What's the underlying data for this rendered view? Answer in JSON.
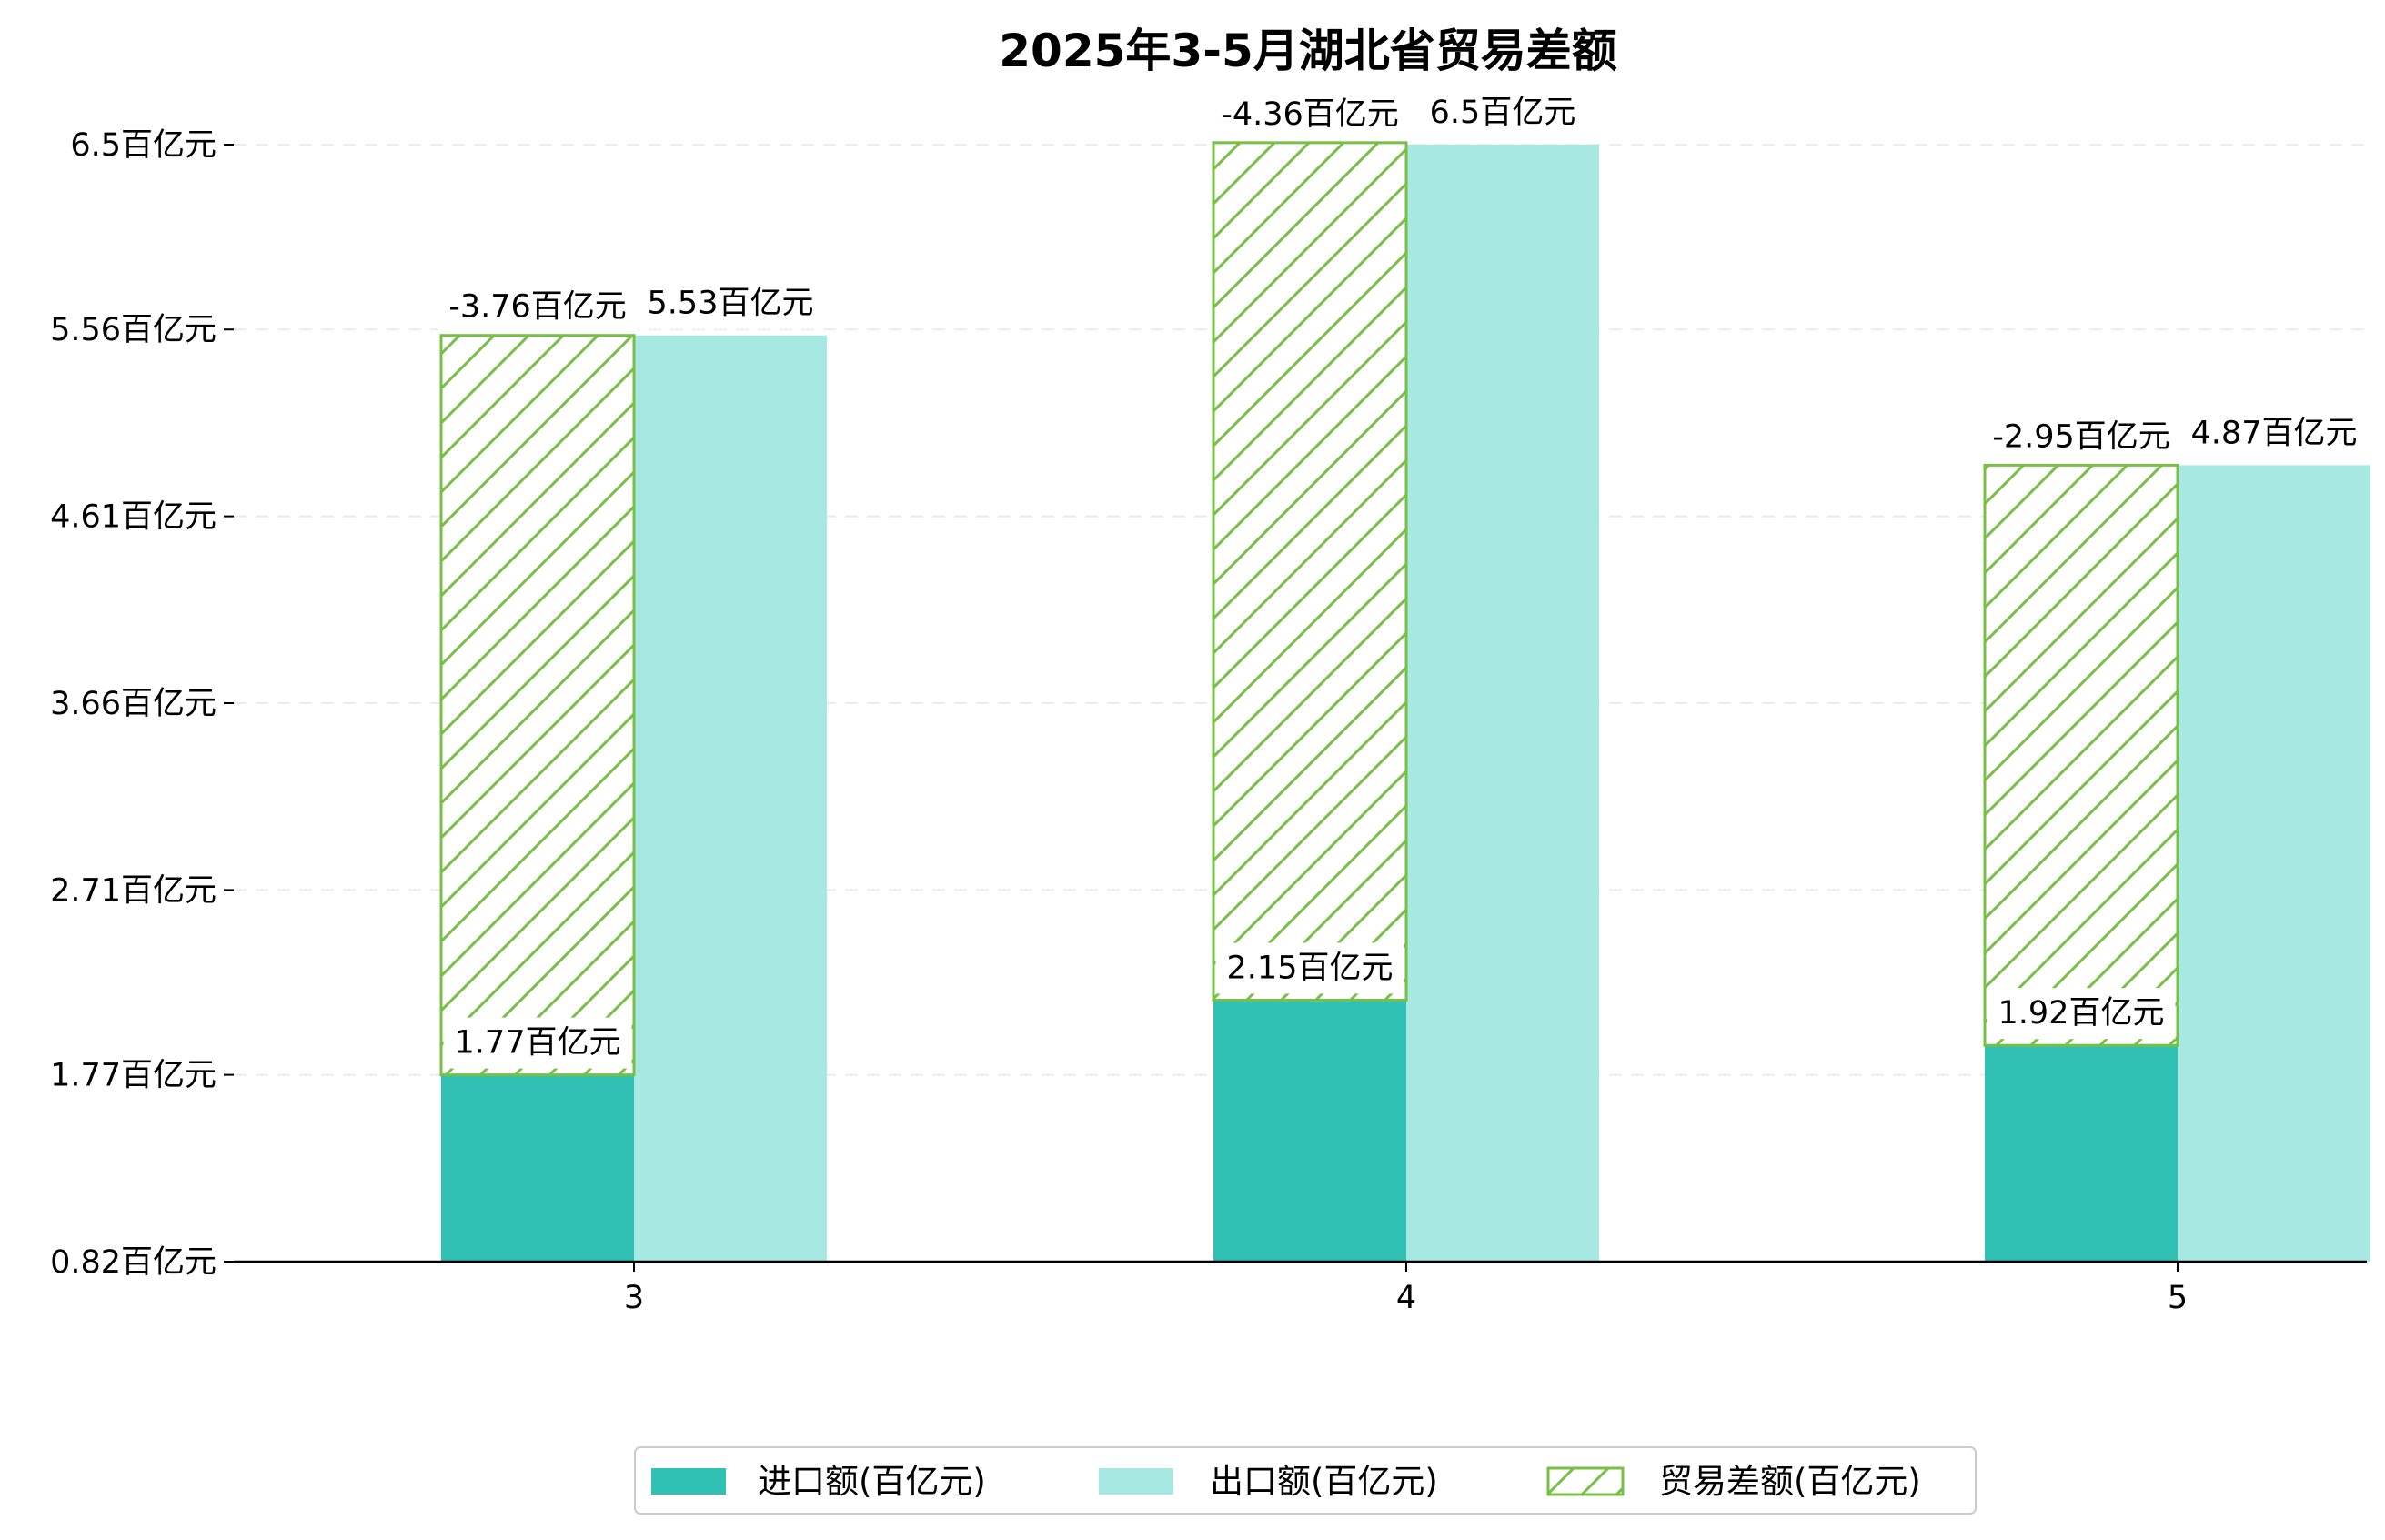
{
  "chart_data": {
    "type": "bar",
    "title": "2025年3-5月湖北省贸易差额",
    "xlabel": "",
    "ylabel": "",
    "categories": [
      "3",
      "4",
      "5"
    ],
    "series": [
      {
        "name": "进口额(百亿元)",
        "color": "#31c0b4",
        "values": [
          1.77,
          2.15,
          1.92
        ],
        "labels": [
          "1.77百亿元",
          "2.15百亿元",
          "1.92百亿元"
        ]
      },
      {
        "name": "出口额(百亿元)",
        "color": "#a8e8e2",
        "values": [
          5.53,
          6.5,
          4.87
        ],
        "labels": [
          "5.53百亿元",
          "6.5百亿元",
          "4.87百亿元"
        ]
      },
      {
        "name": "贸易差额(百亿元)",
        "color": "#78bf45",
        "pattern": "diagonal-hatch",
        "values": [
          -3.76,
          -4.36,
          -2.95
        ],
        "labels": [
          "-3.76百亿元",
          "-4.36百亿元",
          "-2.95百亿元"
        ]
      }
    ],
    "yticks": [
      0.82,
      1.77,
      2.71,
      3.66,
      4.61,
      5.56,
      6.5
    ],
    "ytick_labels": [
      "0.82百亿元",
      "1.77百亿元",
      "2.71百亿元",
      "3.66百亿元",
      "4.61百亿元",
      "5.56百亿元",
      "6.5百亿元"
    ],
    "ylim": [
      0.82,
      6.5
    ],
    "grid": true,
    "legend_position": "bottom-center"
  }
}
